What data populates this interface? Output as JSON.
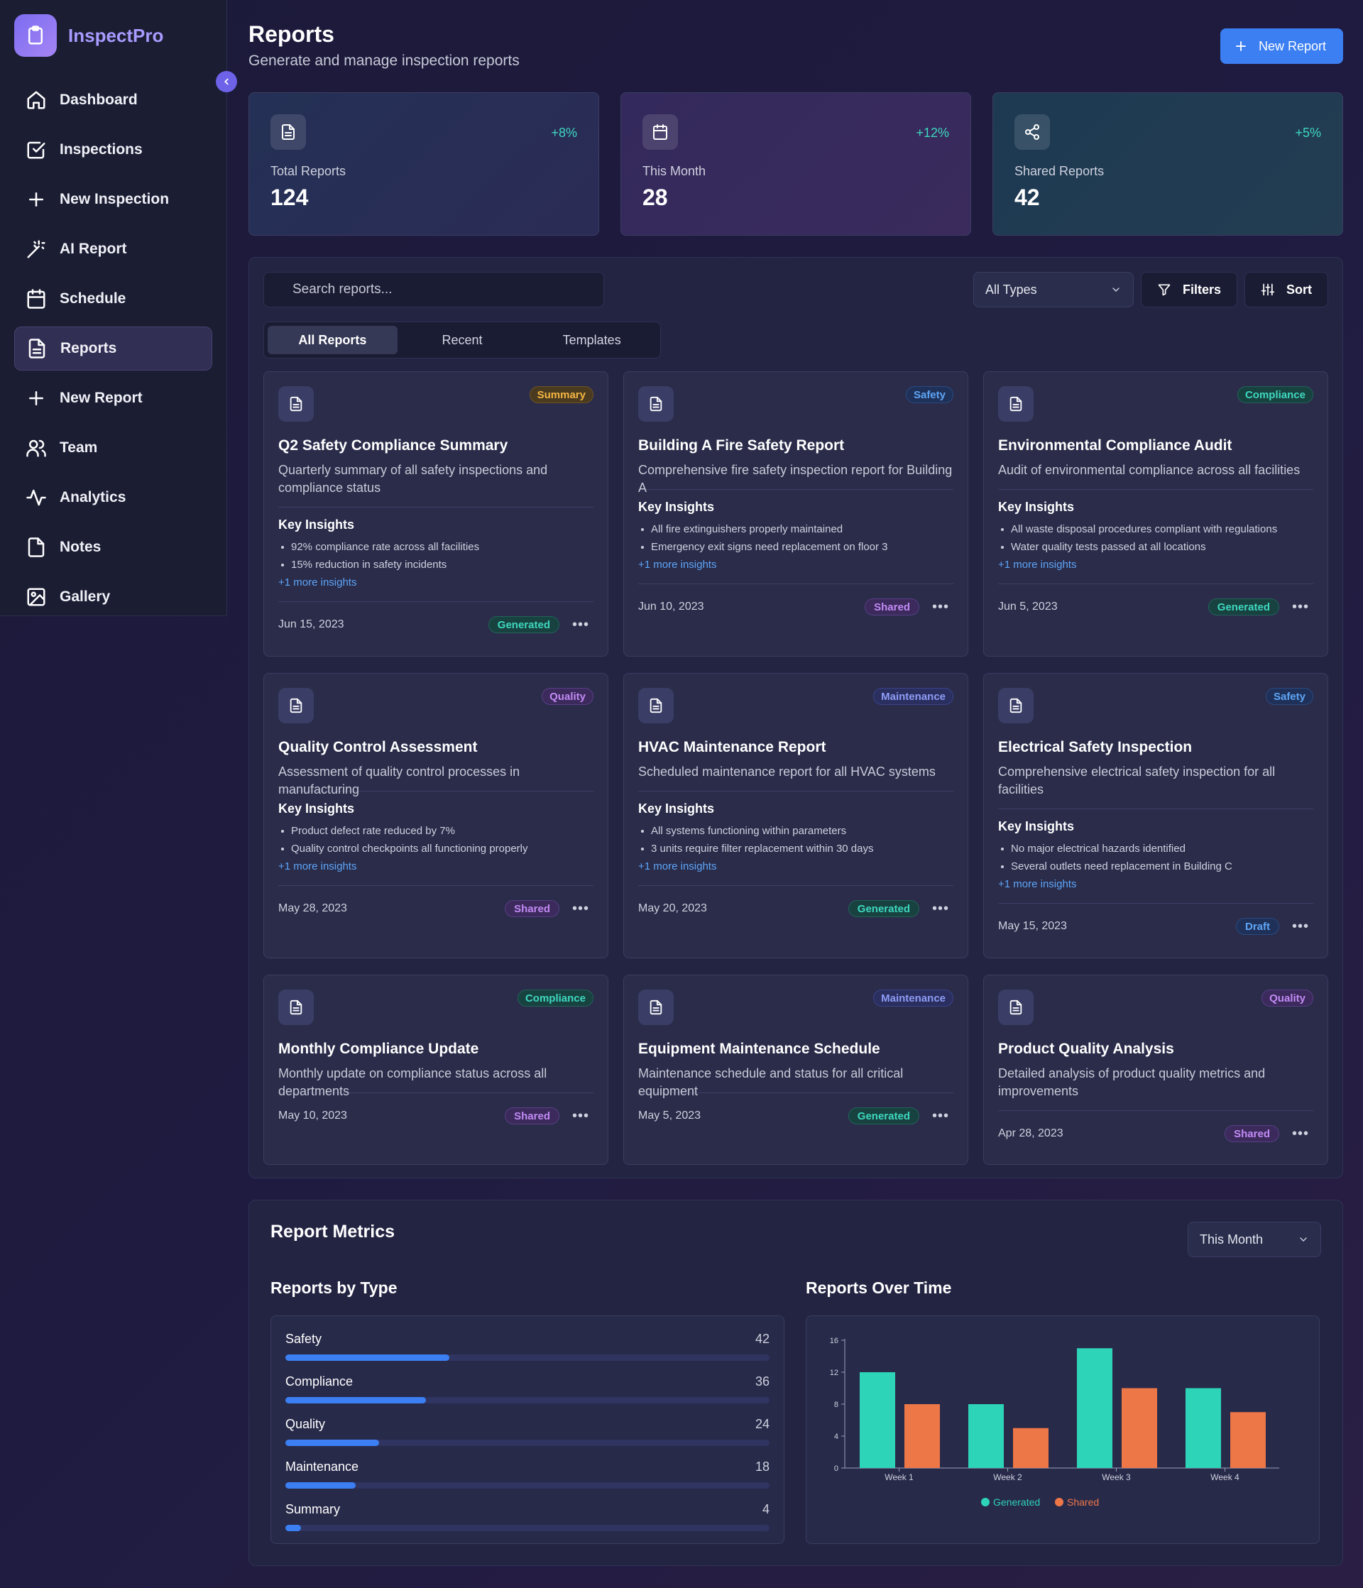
{
  "app": {
    "name": "InspectPro"
  },
  "sidebar": {
    "items": [
      {
        "label": "Dashboard",
        "icon": "home-icon"
      },
      {
        "label": "Inspections",
        "icon": "checkbox-icon"
      },
      {
        "label": "New Inspection",
        "icon": "plus-icon"
      },
      {
        "label": "AI Report",
        "icon": "magic-wand-icon"
      },
      {
        "label": "Schedule",
        "icon": "calendar-icon"
      },
      {
        "label": "Reports",
        "icon": "document-icon",
        "active": true
      },
      {
        "label": "New Report",
        "icon": "plus-icon"
      },
      {
        "label": "Team",
        "icon": "users-icon"
      },
      {
        "label": "Analytics",
        "icon": "activity-icon"
      },
      {
        "label": "Notes",
        "icon": "file-icon"
      },
      {
        "label": "Gallery",
        "icon": "image-icon"
      }
    ]
  },
  "header": {
    "title": "Reports",
    "subtitle": "Generate and manage inspection reports",
    "new_report_label": "New Report"
  },
  "stats": [
    {
      "label": "Total Reports",
      "value": "124",
      "change": "+8%",
      "icon": "document-icon"
    },
    {
      "label": "This Month",
      "value": "28",
      "change": "+12%",
      "icon": "calendar-icon"
    },
    {
      "label": "Shared Reports",
      "value": "42",
      "change": "+5%",
      "icon": "share-icon"
    }
  ],
  "toolbar": {
    "search_placeholder": "Search reports...",
    "type_select": "All Types",
    "filters_label": "Filters",
    "sort_label": "Sort"
  },
  "tabs": [
    "All Reports",
    "Recent",
    "Templates"
  ],
  "insights_heading": "Key Insights",
  "reports": [
    {
      "title": "Q2 Safety Compliance Summary",
      "desc": "Quarterly summary of all safety inspections and compliance status",
      "category": "Summary",
      "insights": [
        "92% compliance rate across all facilities",
        "15% reduction in safety incidents"
      ],
      "more": "+1 more insights",
      "date": "Jun 15, 2023",
      "status": "Generated"
    },
    {
      "title": "Building A Fire Safety Report",
      "desc": "Comprehensive fire safety inspection report for Building A",
      "category": "Safety",
      "insights": [
        "All fire extinguishers properly maintained",
        "Emergency exit signs need replacement on floor 3"
      ],
      "more": "+1 more insights",
      "date": "Jun 10, 2023",
      "status": "Shared"
    },
    {
      "title": "Environmental Compliance Audit",
      "desc": "Audit of environmental compliance across all facilities",
      "category": "Compliance",
      "insights": [
        "All waste disposal procedures compliant with regulations",
        "Water quality tests passed at all locations"
      ],
      "more": "+1 more insights",
      "date": "Jun 5, 2023",
      "status": "Generated"
    },
    {
      "title": "Quality Control Assessment",
      "desc": "Assessment of quality control processes in manufacturing",
      "category": "Quality",
      "insights": [
        "Product defect rate reduced by 7%",
        "Quality control checkpoints all functioning properly"
      ],
      "more": "+1 more insights",
      "date": "May 28, 2023",
      "status": "Shared"
    },
    {
      "title": "HVAC Maintenance Report",
      "desc": "Scheduled maintenance report for all HVAC systems",
      "category": "Maintenance",
      "insights": [
        "All systems functioning within parameters",
        "3 units require filter replacement within 30 days"
      ],
      "more": "+1 more insights",
      "date": "May 20, 2023",
      "status": "Generated"
    },
    {
      "title": "Electrical Safety Inspection",
      "desc": "Comprehensive electrical safety inspection for all facilities",
      "category": "Safety",
      "insights": [
        "No major electrical hazards identified",
        "Several outlets need replacement in Building C"
      ],
      "more": "+1 more insights",
      "date": "May 15, 2023",
      "status": "Draft"
    },
    {
      "title": "Monthly Compliance Update",
      "desc": "Monthly update on compliance status across all departments",
      "category": "Compliance",
      "insights": [],
      "more": "",
      "date": "May 10, 2023",
      "status": "Shared"
    },
    {
      "title": "Equipment Maintenance Schedule",
      "desc": "Maintenance schedule and status for all critical equipment",
      "category": "Maintenance",
      "insights": [],
      "more": "",
      "date": "May 5, 2023",
      "status": "Generated"
    },
    {
      "title": "Product Quality Analysis",
      "desc": "Detailed analysis of product quality metrics and improvements",
      "category": "Quality",
      "insights": [],
      "more": "",
      "date": "Apr 28, 2023",
      "status": "Shared"
    }
  ],
  "metrics": {
    "title": "Report Metrics",
    "period": "This Month",
    "by_type_title": "Reports by Type",
    "over_time_title": "Reports Over Time",
    "by_type": [
      {
        "label": "Safety",
        "value": 42
      },
      {
        "label": "Compliance",
        "value": 36
      },
      {
        "label": "Quality",
        "value": 24
      },
      {
        "label": "Maintenance",
        "value": 18
      },
      {
        "label": "Summary",
        "value": 4
      }
    ]
  },
  "colors": {
    "accent": "#3b7ff2",
    "generated": "#2dd4b8",
    "shared": "#ee7748"
  },
  "chart_data": {
    "type": "bar",
    "title": "Reports Over Time",
    "categories": [
      "Week 1",
      "Week 2",
      "Week 3",
      "Week 4"
    ],
    "series": [
      {
        "name": "Generated",
        "values": [
          12,
          8,
          15,
          10
        ],
        "color": "#2dd4b8"
      },
      {
        "name": "Shared",
        "values": [
          8,
          5,
          10,
          7
        ],
        "color": "#ee7748"
      }
    ],
    "ylim": [
      0,
      16
    ],
    "yticks": [
      0,
      4,
      8,
      12,
      16
    ],
    "legend": "bottom",
    "grid": false
  }
}
